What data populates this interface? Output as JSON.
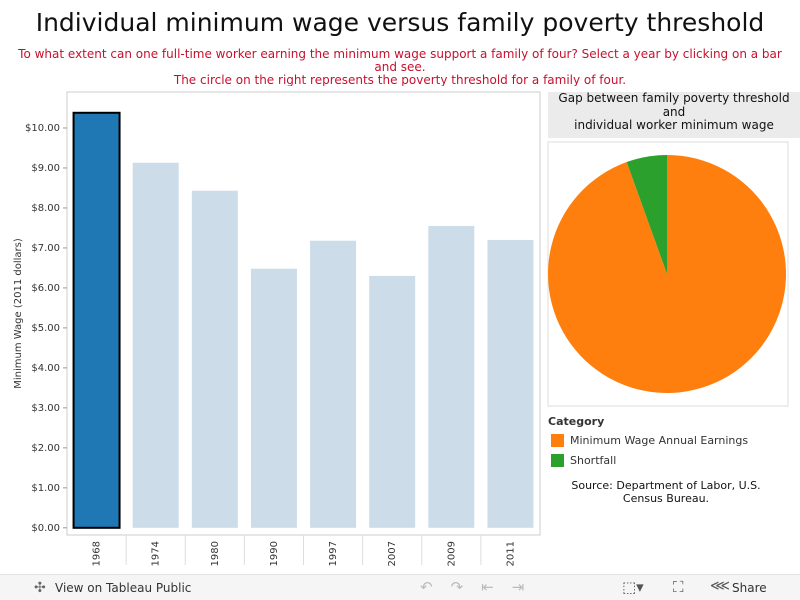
{
  "dashboard": {
    "title": "Individual minimum wage versus family poverty threshold",
    "subtitle": [
      "To what extent can one full-time worker earning the minimum wage support a family of four? Select a year by clicking on a bar and see.",
      "The circle on the right represents the poverty threshold for a family of four."
    ]
  },
  "chart_data": [
    {
      "type": "bar",
      "y_label": "Minimum Wage (2011 dollars)",
      "categories": [
        "1968",
        "1974",
        "1980",
        "1990",
        "1997",
        "2007",
        "2009",
        "2011"
      ],
      "values": [
        10.38,
        9.13,
        8.43,
        6.48,
        7.18,
        6.3,
        7.55,
        7.2
      ],
      "colors": [
        "#1f77b4",
        "#ccdce8",
        "#ccdce8",
        "#ccdce8",
        "#ccdce8",
        "#ccdce8",
        "#ccdce8",
        "#ccdce8"
      ],
      "outlined": [
        true,
        false,
        false,
        false,
        false,
        false,
        false,
        false
      ],
      "ylim": [
        -0.18,
        10.9
      ],
      "yticks": [
        {
          "value": 0,
          "label": "$0.00"
        },
        {
          "value": 1,
          "label": "$1.00"
        },
        {
          "value": 2,
          "label": "$2.00"
        },
        {
          "value": 3,
          "label": "$3.00"
        },
        {
          "value": 4,
          "label": "$4.00"
        },
        {
          "value": 5,
          "label": "$5.00"
        },
        {
          "value": 6,
          "label": "$6.00"
        },
        {
          "value": 7,
          "label": "$7.00"
        },
        {
          "value": 8,
          "label": "$8.00"
        },
        {
          "value": 9,
          "label": "$9.00"
        },
        {
          "value": 10,
          "label": "$10.00"
        }
      ]
    },
    {
      "type": "pie",
      "title": [
        "Gap between family poverty threshold",
        "and",
        "individual worker minimum wage"
      ],
      "legend_title": "Category",
      "categories": [
        "Minimum Wage Annual Earnings",
        "Shortfall"
      ],
      "values": [
        94.5,
        5.5
      ],
      "colors": [
        "#ff7f0e",
        "#2ca02c"
      ],
      "source": "Source: Department of Labor, U.S. Census Bureau."
    }
  ],
  "toolbar": {
    "view": "View on Tableau Public",
    "share": "Share"
  }
}
